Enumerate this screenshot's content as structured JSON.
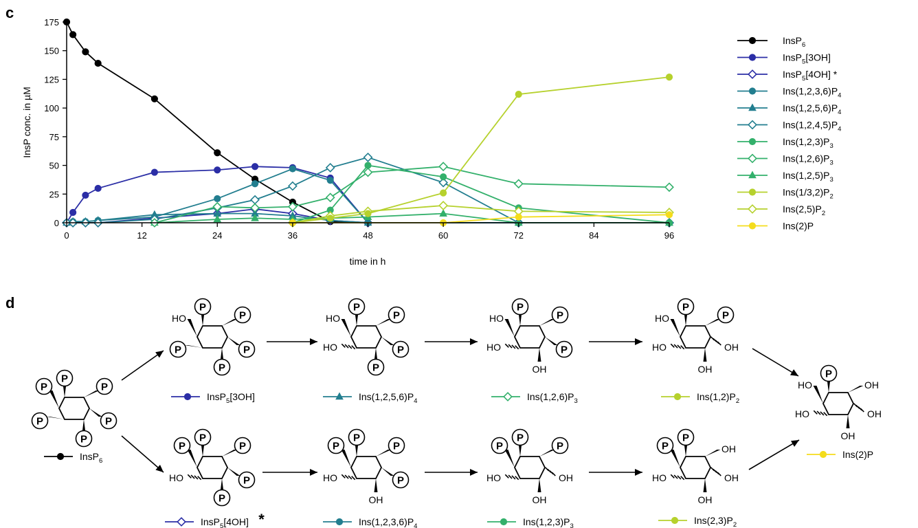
{
  "panels": {
    "c": {
      "letter": "c"
    },
    "d": {
      "letter": "d"
    }
  },
  "chart_data": {
    "type": "line",
    "xlabel": "time in h",
    "ylabel": "InsP conc. in µM",
    "xlim": [
      0,
      96
    ],
    "ylim": [
      0,
      175
    ],
    "xticks": [
      0,
      12,
      24,
      36,
      48,
      60,
      72,
      84,
      96
    ],
    "yticks": [
      0,
      25,
      50,
      75,
      100,
      125,
      150,
      175
    ],
    "grid": false,
    "legend_position": "right",
    "series": [
      {
        "name": "InsP6",
        "base": "InsP",
        "sub": "6",
        "post": "",
        "color": "#000000",
        "marker": "circle",
        "points": [
          [
            0,
            175
          ],
          [
            1,
            164
          ],
          [
            3,
            149
          ],
          [
            5,
            139
          ],
          [
            14,
            108
          ],
          [
            24,
            61
          ],
          [
            30,
            38
          ],
          [
            36,
            18
          ],
          [
            42,
            1
          ],
          [
            48,
            0
          ],
          [
            72,
            0
          ],
          [
            96,
            0
          ]
        ]
      },
      {
        "name": "InsP5[3OH]",
        "base": "InsP",
        "sub": "5",
        "post": "[3OH]",
        "color": "#2b2ea6",
        "marker": "circle",
        "points": [
          [
            0,
            0
          ],
          [
            1,
            9
          ],
          [
            3,
            24
          ],
          [
            5,
            30
          ],
          [
            14,
            44
          ],
          [
            24,
            46
          ],
          [
            30,
            49
          ],
          [
            36,
            48
          ],
          [
            42,
            39
          ],
          [
            48,
            0
          ],
          [
            72,
            0
          ],
          [
            96,
            0
          ]
        ]
      },
      {
        "name": "InsP5[4OH]*",
        "base": "InsP",
        "sub": "5",
        "post": "[4OH] *",
        "color": "#2b2ea6",
        "marker": "diamond-open",
        "points": [
          [
            0,
            0
          ],
          [
            1,
            0
          ],
          [
            3,
            0
          ],
          [
            5,
            0
          ],
          [
            14,
            4
          ],
          [
            24,
            8
          ],
          [
            30,
            12
          ],
          [
            36,
            8
          ],
          [
            42,
            2
          ],
          [
            48,
            0
          ],
          [
            72,
            0
          ],
          [
            96,
            0
          ]
        ]
      },
      {
        "name": "Ins(1,2,3,6)P4",
        "base": "Ins(1,2,3,6)P",
        "sub": "4",
        "post": "",
        "color": "#227e8f",
        "marker": "circle",
        "points": [
          [
            0,
            0
          ],
          [
            1,
            1
          ],
          [
            3,
            1
          ],
          [
            5,
            2
          ],
          [
            14,
            5
          ],
          [
            24,
            21
          ],
          [
            30,
            34
          ],
          [
            36,
            47
          ],
          [
            42,
            37
          ],
          [
            48,
            0
          ],
          [
            72,
            0
          ],
          [
            96,
            0
          ]
        ]
      },
      {
        "name": "Ins(1,2,5,6)P4",
        "base": "Ins(1,2,5,6)P",
        "sub": "4",
        "post": "",
        "color": "#227e8f",
        "marker": "triangle",
        "points": [
          [
            0,
            0
          ],
          [
            1,
            1
          ],
          [
            3,
            1
          ],
          [
            5,
            2
          ],
          [
            14,
            7
          ],
          [
            24,
            8
          ],
          [
            30,
            8
          ],
          [
            36,
            6
          ],
          [
            42,
            2
          ],
          [
            48,
            0
          ],
          [
            72,
            0
          ],
          [
            96,
            0
          ]
        ]
      },
      {
        "name": "Ins(1,2,4,5)P4",
        "base": "Ins(1,2,4,5)P",
        "sub": "4",
        "post": "",
        "color": "#227e8f",
        "marker": "diamond-open",
        "points": [
          [
            0,
            0
          ],
          [
            1,
            0
          ],
          [
            3,
            0
          ],
          [
            5,
            0
          ],
          [
            14,
            3
          ],
          [
            24,
            13
          ],
          [
            30,
            20
          ],
          [
            36,
            32
          ],
          [
            42,
            48
          ],
          [
            48,
            57
          ],
          [
            60,
            35
          ],
          [
            72,
            0
          ],
          [
            96,
            0
          ]
        ]
      },
      {
        "name": "Ins(1,2,3)P3",
        "base": "Ins(1,2,3)P",
        "sub": "3",
        "post": "",
        "color": "#33b06b",
        "marker": "circle",
        "points": [
          [
            36,
            0
          ],
          [
            42,
            11
          ],
          [
            48,
            50
          ],
          [
            60,
            40
          ],
          [
            72,
            13
          ],
          [
            96,
            0
          ]
        ]
      },
      {
        "name": "Ins(1,2,6)P3",
        "base": "Ins(1,2,6)P",
        "sub": "3",
        "post": "",
        "color": "#33b06b",
        "marker": "diamond-open",
        "points": [
          [
            14,
            0
          ],
          [
            24,
            14
          ],
          [
            30,
            13
          ],
          [
            36,
            14
          ],
          [
            42,
            22
          ],
          [
            48,
            44
          ],
          [
            60,
            49
          ],
          [
            72,
            34
          ],
          [
            96,
            31
          ]
        ]
      },
      {
        "name": "Ins(1,2,5)P3",
        "base": "Ins(1,2,5)P",
        "sub": "3",
        "post": "",
        "color": "#33b06b",
        "marker": "triangle",
        "points": [
          [
            14,
            0
          ],
          [
            24,
            3
          ],
          [
            30,
            4
          ],
          [
            36,
            3
          ],
          [
            42,
            4
          ],
          [
            48,
            5
          ],
          [
            60,
            8
          ],
          [
            72,
            0
          ],
          [
            96,
            0
          ]
        ]
      },
      {
        "name": "Ins(1/3,2)P2",
        "base": "Ins(1/3,2)P",
        "sub": "2",
        "post": "",
        "color": "#b6d12d",
        "marker": "circle",
        "points": [
          [
            36,
            0
          ],
          [
            42,
            4
          ],
          [
            48,
            8
          ],
          [
            60,
            26
          ],
          [
            72,
            112
          ],
          [
            96,
            127
          ]
        ]
      },
      {
        "name": "Ins(2,5)P2",
        "base": "Ins(2,5)P",
        "sub": "2",
        "post": "",
        "color": "#b6d12d",
        "marker": "diamond-open",
        "points": [
          [
            36,
            0
          ],
          [
            42,
            6
          ],
          [
            48,
            10
          ],
          [
            60,
            15
          ],
          [
            72,
            10
          ],
          [
            96,
            9
          ]
        ]
      },
      {
        "name": "Ins(2)P",
        "base": "Ins(2)P",
        "sub": "",
        "post": "",
        "color": "#f4dc1c",
        "marker": "circle",
        "points": [
          [
            36,
            0
          ],
          [
            60,
            0
          ],
          [
            72,
            5
          ],
          [
            96,
            7
          ]
        ]
      }
    ]
  },
  "scheme": {
    "phosphate_label": "P",
    "labels": {
      "ho": "HO",
      "oh": "OH"
    },
    "compounds": [
      {
        "id": "insp6",
        "base": "InsP",
        "sub": "6",
        "post": "",
        "color": "#000000",
        "marker": "circle",
        "star": ""
      },
      {
        "id": "insp5-3oh",
        "base": "InsP",
        "sub": "5",
        "post": "[3OH]",
        "color": "#2b2ea6",
        "marker": "circle",
        "star": ""
      },
      {
        "id": "ins1256p4",
        "base": "Ins(1,2,5,6)P",
        "sub": "4",
        "post": "",
        "color": "#227e8f",
        "marker": "triangle",
        "star": ""
      },
      {
        "id": "ins126p3",
        "base": "Ins(1,2,6)P",
        "sub": "3",
        "post": "",
        "color": "#33b06b",
        "marker": "diamond-open",
        "star": ""
      },
      {
        "id": "ins12p2",
        "base": "Ins(1,2)P",
        "sub": "2",
        "post": "",
        "color": "#b6d12d",
        "marker": "circle",
        "star": ""
      },
      {
        "id": "ins2p",
        "base": "Ins(2)P",
        "sub": "",
        "post": "",
        "color": "#f4dc1c",
        "marker": "circle",
        "star": ""
      },
      {
        "id": "insp5-4oh",
        "base": "InsP",
        "sub": "5",
        "post": "[4OH]",
        "color": "#2b2ea6",
        "marker": "diamond-open",
        "star": "*"
      },
      {
        "id": "ins1236p4",
        "base": "Ins(1,2,3,6)P",
        "sub": "4",
        "post": "",
        "color": "#227e8f",
        "marker": "circle",
        "star": ""
      },
      {
        "id": "ins123p3",
        "base": "Ins(1,2,3)P",
        "sub": "3",
        "post": "",
        "color": "#33b06b",
        "marker": "circle",
        "star": ""
      },
      {
        "id": "ins23p2",
        "base": "Ins(2,3)P",
        "sub": "2",
        "post": "",
        "color": "#b6d12d",
        "marker": "circle",
        "star": ""
      }
    ]
  }
}
